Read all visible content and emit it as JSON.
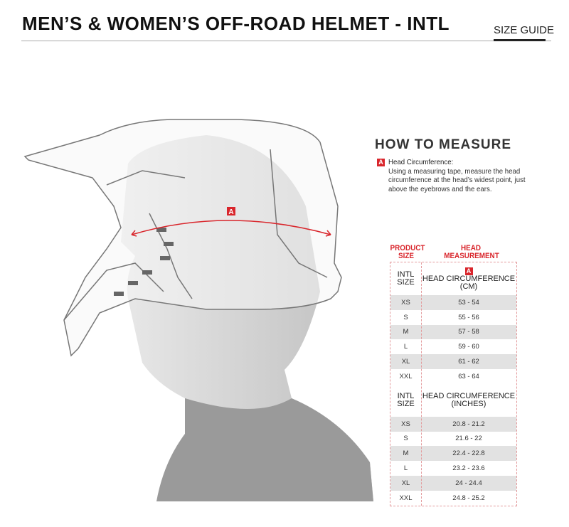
{
  "header": {
    "title": "MEN’S & WOMEN’S OFF-ROAD HELMET - INTL",
    "size_guide": "SIZE GUIDE"
  },
  "illustration": {
    "marker": "A",
    "arc_color": "#d9262c"
  },
  "how_to_measure": {
    "title": "HOW TO MEASURE",
    "marker": "A",
    "heading": "Head Circumference:",
    "text": "Using a measuring tape, measure the head circumference at the head’s widest point, just above the eyebrows and the ears."
  },
  "table": {
    "col1_header": "PRODUCT SIZE",
    "col2_header": "HEAD MEASUREMENT",
    "marker": "A",
    "sections": [
      {
        "size_label": "INTL SIZE",
        "measure_label": "HEAD CIRCUMFERENCE (CM)",
        "rows": [
          [
            "XS",
            "53 - 54"
          ],
          [
            "S",
            "55 - 56"
          ],
          [
            "M",
            "57 - 58"
          ],
          [
            "L",
            "59 - 60"
          ],
          [
            "XL",
            "61 - 62"
          ],
          [
            "XXL",
            "63 - 64"
          ]
        ]
      },
      {
        "size_label": "INTL SIZE",
        "measure_label": "HEAD CIRCUMFERENCE (INCHES)",
        "rows": [
          [
            "XS",
            "20.8 - 21.2"
          ],
          [
            "S",
            "21.6 - 22"
          ],
          [
            "M",
            "22.4 - 22.8"
          ],
          [
            "L",
            "23.2 - 23.6"
          ],
          [
            "XL",
            "24 - 24.4"
          ],
          [
            "XXL",
            "24.8 - 25.2"
          ]
        ]
      }
    ]
  },
  "colors": {
    "accent": "#d9262c",
    "stripe": "#e2e2e2"
  }
}
